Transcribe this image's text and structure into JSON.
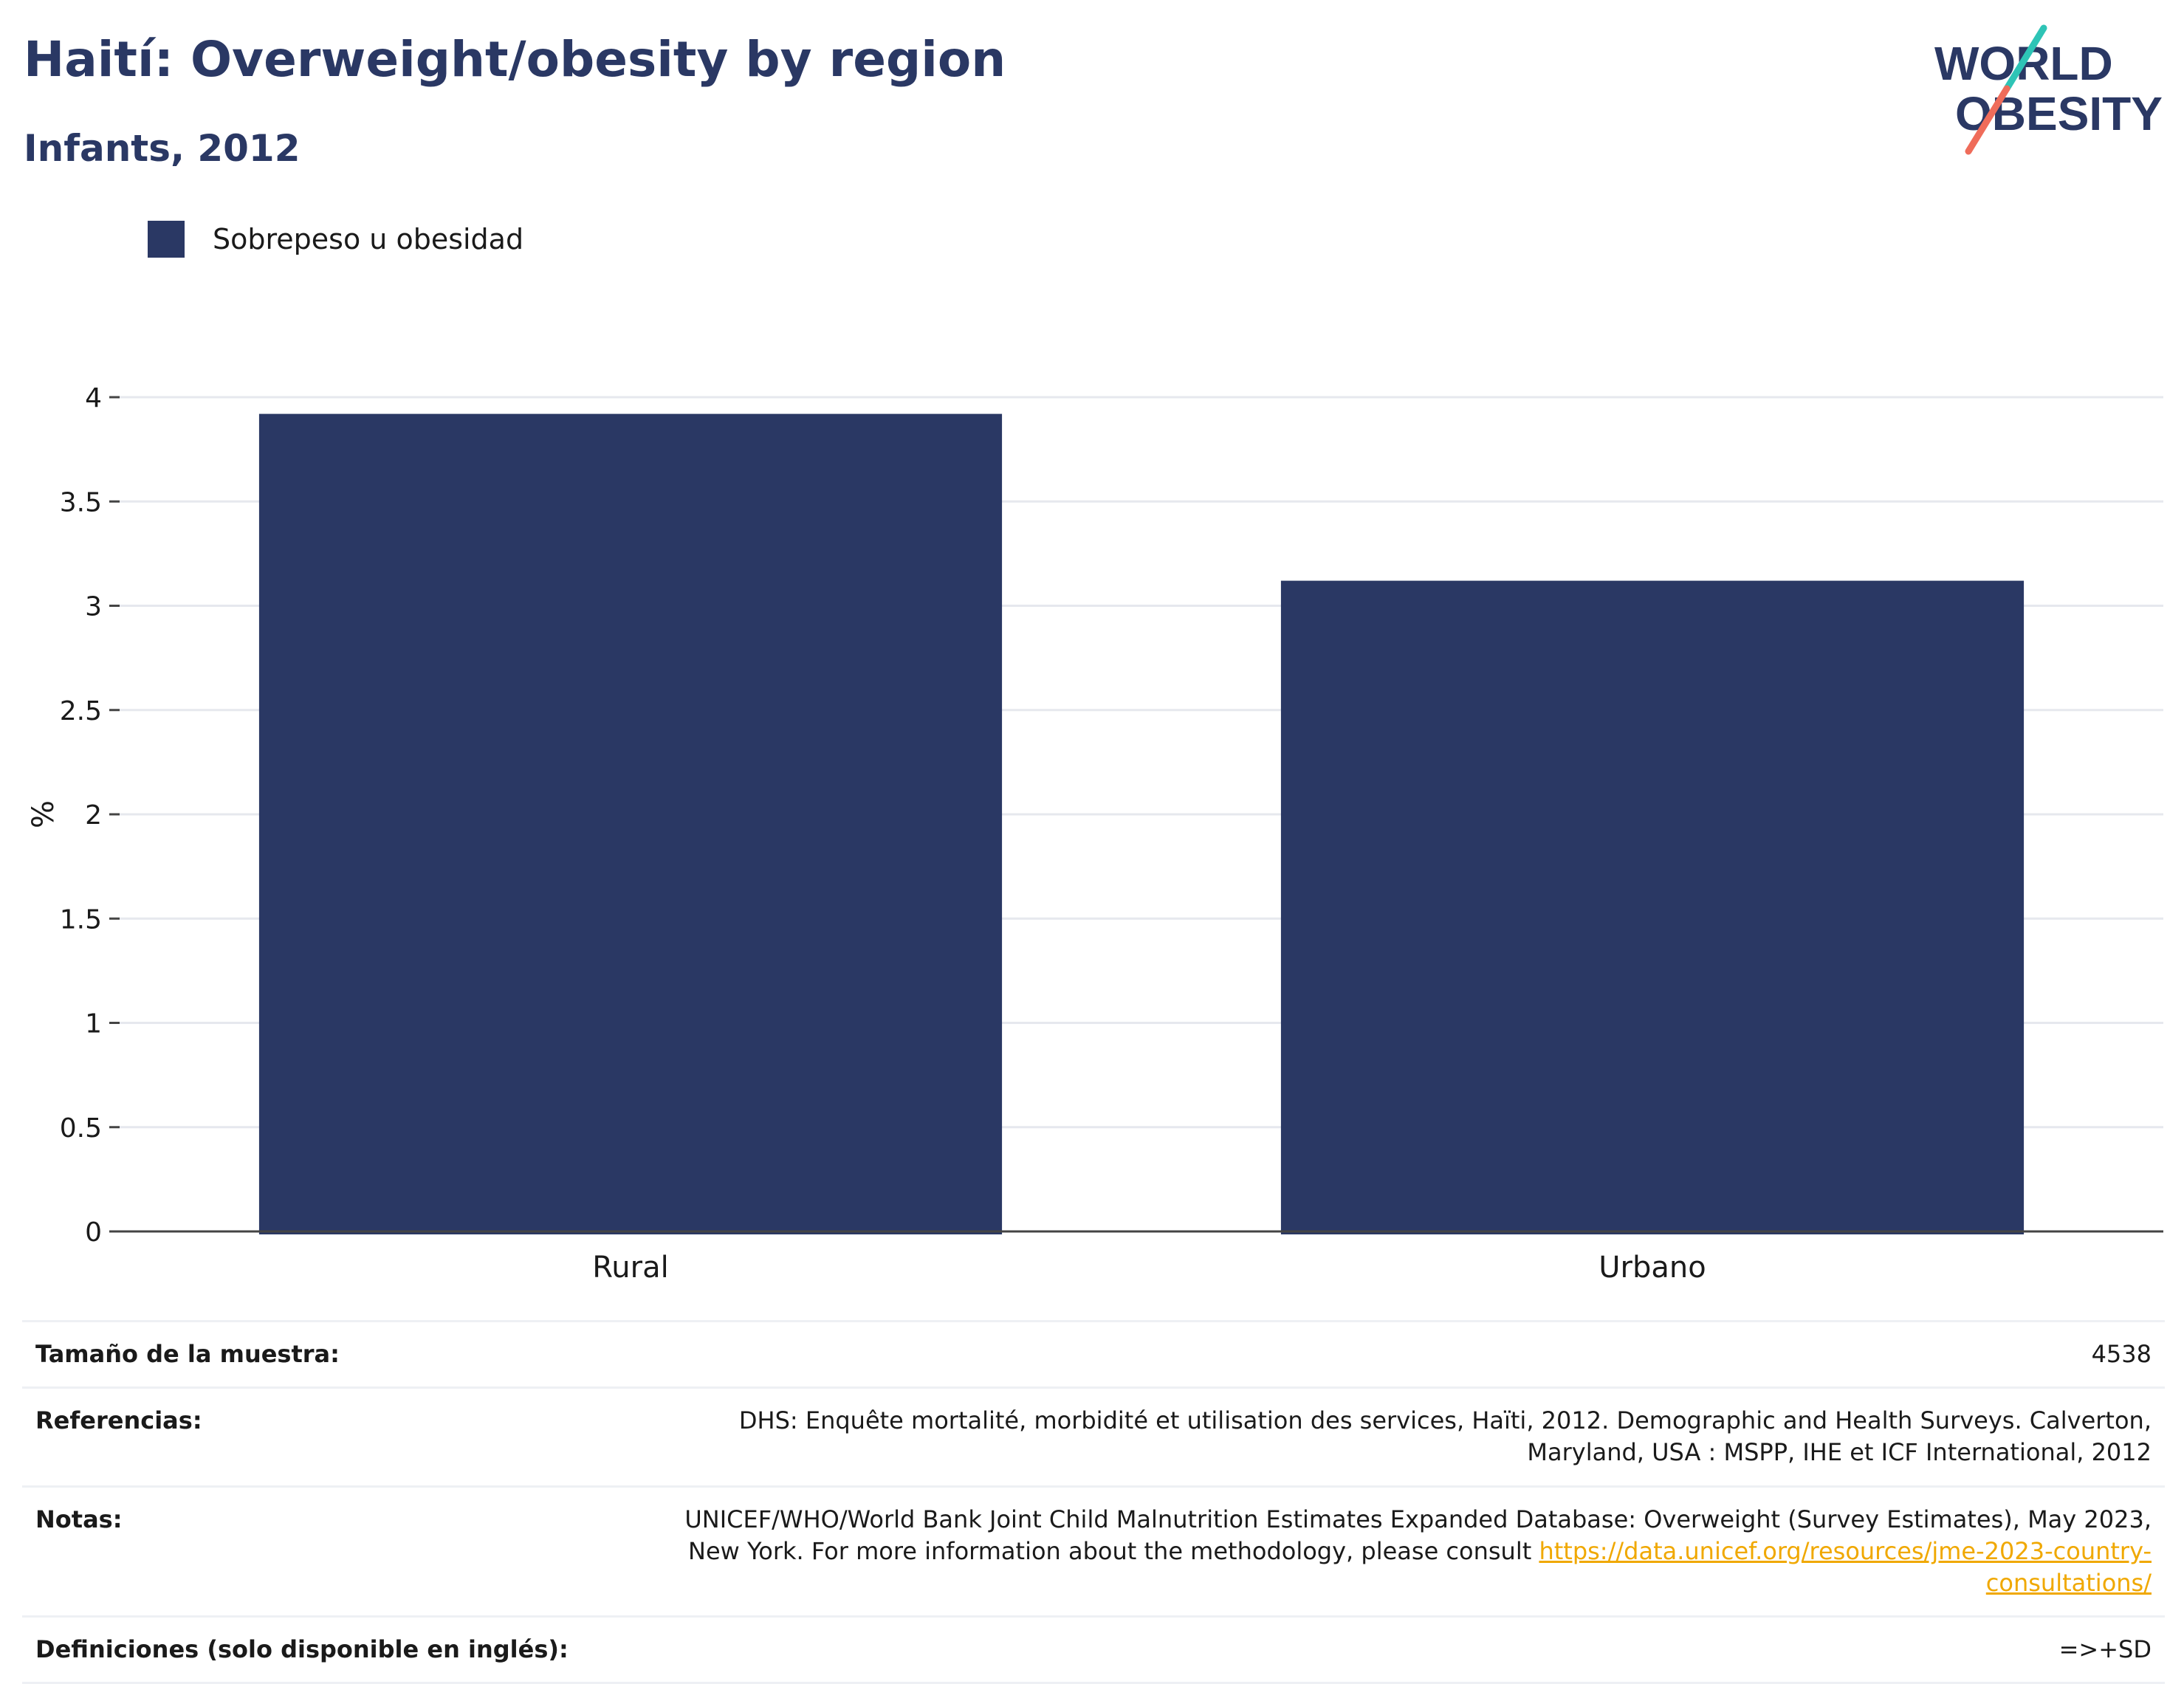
{
  "title": "Haití: Overweight/obesity by region",
  "subtitle": "Infants, 2012",
  "logo": {
    "line1": "WORLD",
    "line2": "OBESITY"
  },
  "colors": {
    "bar": "#2a3864",
    "title": "#2a3864",
    "grid": "#e6e8ee",
    "axis": "#444444",
    "link": "#f0a800",
    "logo_teal": "#2ec4b6",
    "logo_coral": "#ef6c5a"
  },
  "legend": {
    "label": "Sobrepeso u obesidad"
  },
  "chart_data": {
    "type": "bar",
    "categories": [
      "Rural",
      "Urbano"
    ],
    "series": [
      {
        "name": "Sobrepeso u obesidad",
        "values": [
          3.92,
          3.12
        ]
      }
    ],
    "ylabel": "%",
    "xlabel": "",
    "ylim": [
      0,
      4
    ],
    "yticks": [
      "0",
      "0.5",
      "1",
      "1.5",
      "2",
      "2.5",
      "3",
      "3.5",
      "4"
    ],
    "grid": true,
    "legend_position": "top-left"
  },
  "meta": {
    "sample": {
      "label": "Tamaño de la muestra:",
      "value": "4538"
    },
    "references": {
      "label": "Referencias:",
      "value": "DHS: Enquête mortalité, morbidité et utilisation des services, Haïti, 2012. Demographic and Health Surveys. Calverton, Maryland, USA : MSPP, IHE et ICF International, 2012"
    },
    "notes": {
      "label": "Notas:",
      "value": "UNICEF/WHO/World Bank Joint Child Malnutrition Estimates Expanded Database: Overweight (Survey Estimates), May 2023, New York. For more information about the methodology, please consult ",
      "link": "https://data.unicef.org/resources/jme-2023-country-consultations/"
    },
    "definitions": {
      "label": "Definiciones (solo disponible en inglés):",
      "value": "=>+SD"
    }
  }
}
